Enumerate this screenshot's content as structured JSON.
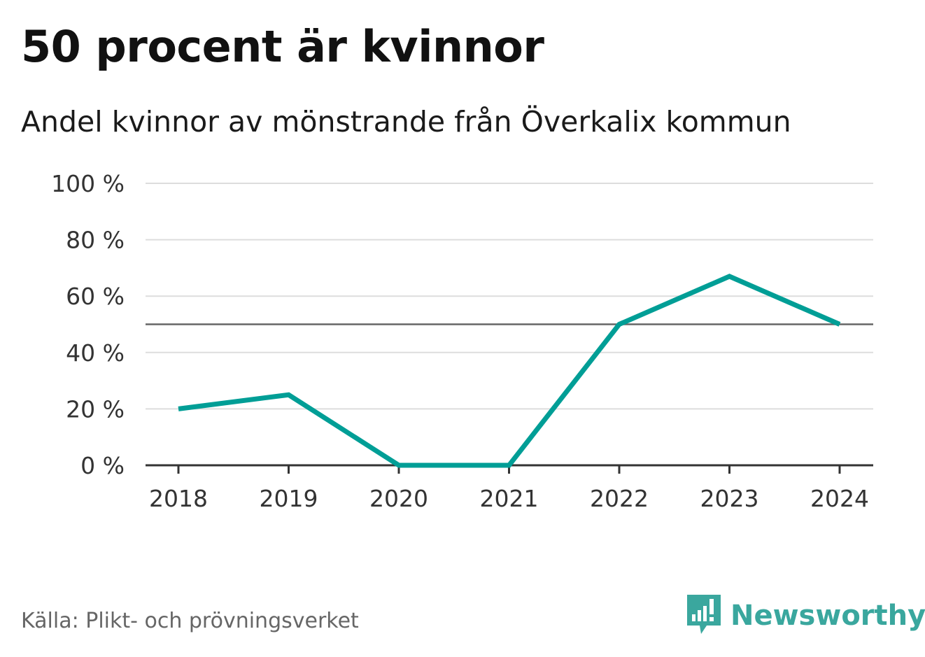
{
  "title": "50 procent är kvinnor",
  "subtitle": "Andel kvinnor av mönstrande från Överkalix kommun",
  "source": "Källa: Plikt- och prövningsverket",
  "brand": {
    "name": "Newsworthy",
    "icon": "newsworthy-logo-icon",
    "color": "#3aa79e"
  },
  "chart_data": {
    "type": "line",
    "categories": [
      "2018",
      "2019",
      "2020",
      "2021",
      "2022",
      "2023",
      "2024"
    ],
    "series": [
      {
        "values": [
          20,
          25,
          0,
          0,
          50,
          67,
          50
        ],
        "color": "#009e96"
      }
    ],
    "reference_line": 50,
    "ylim": [
      0,
      100
    ],
    "yticks": [
      0,
      20,
      40,
      60,
      80,
      100
    ],
    "ytick_labels": [
      "0 %",
      "20 %",
      "40 %",
      "60 %",
      "80 %",
      "100 %"
    ],
    "grid": true
  }
}
